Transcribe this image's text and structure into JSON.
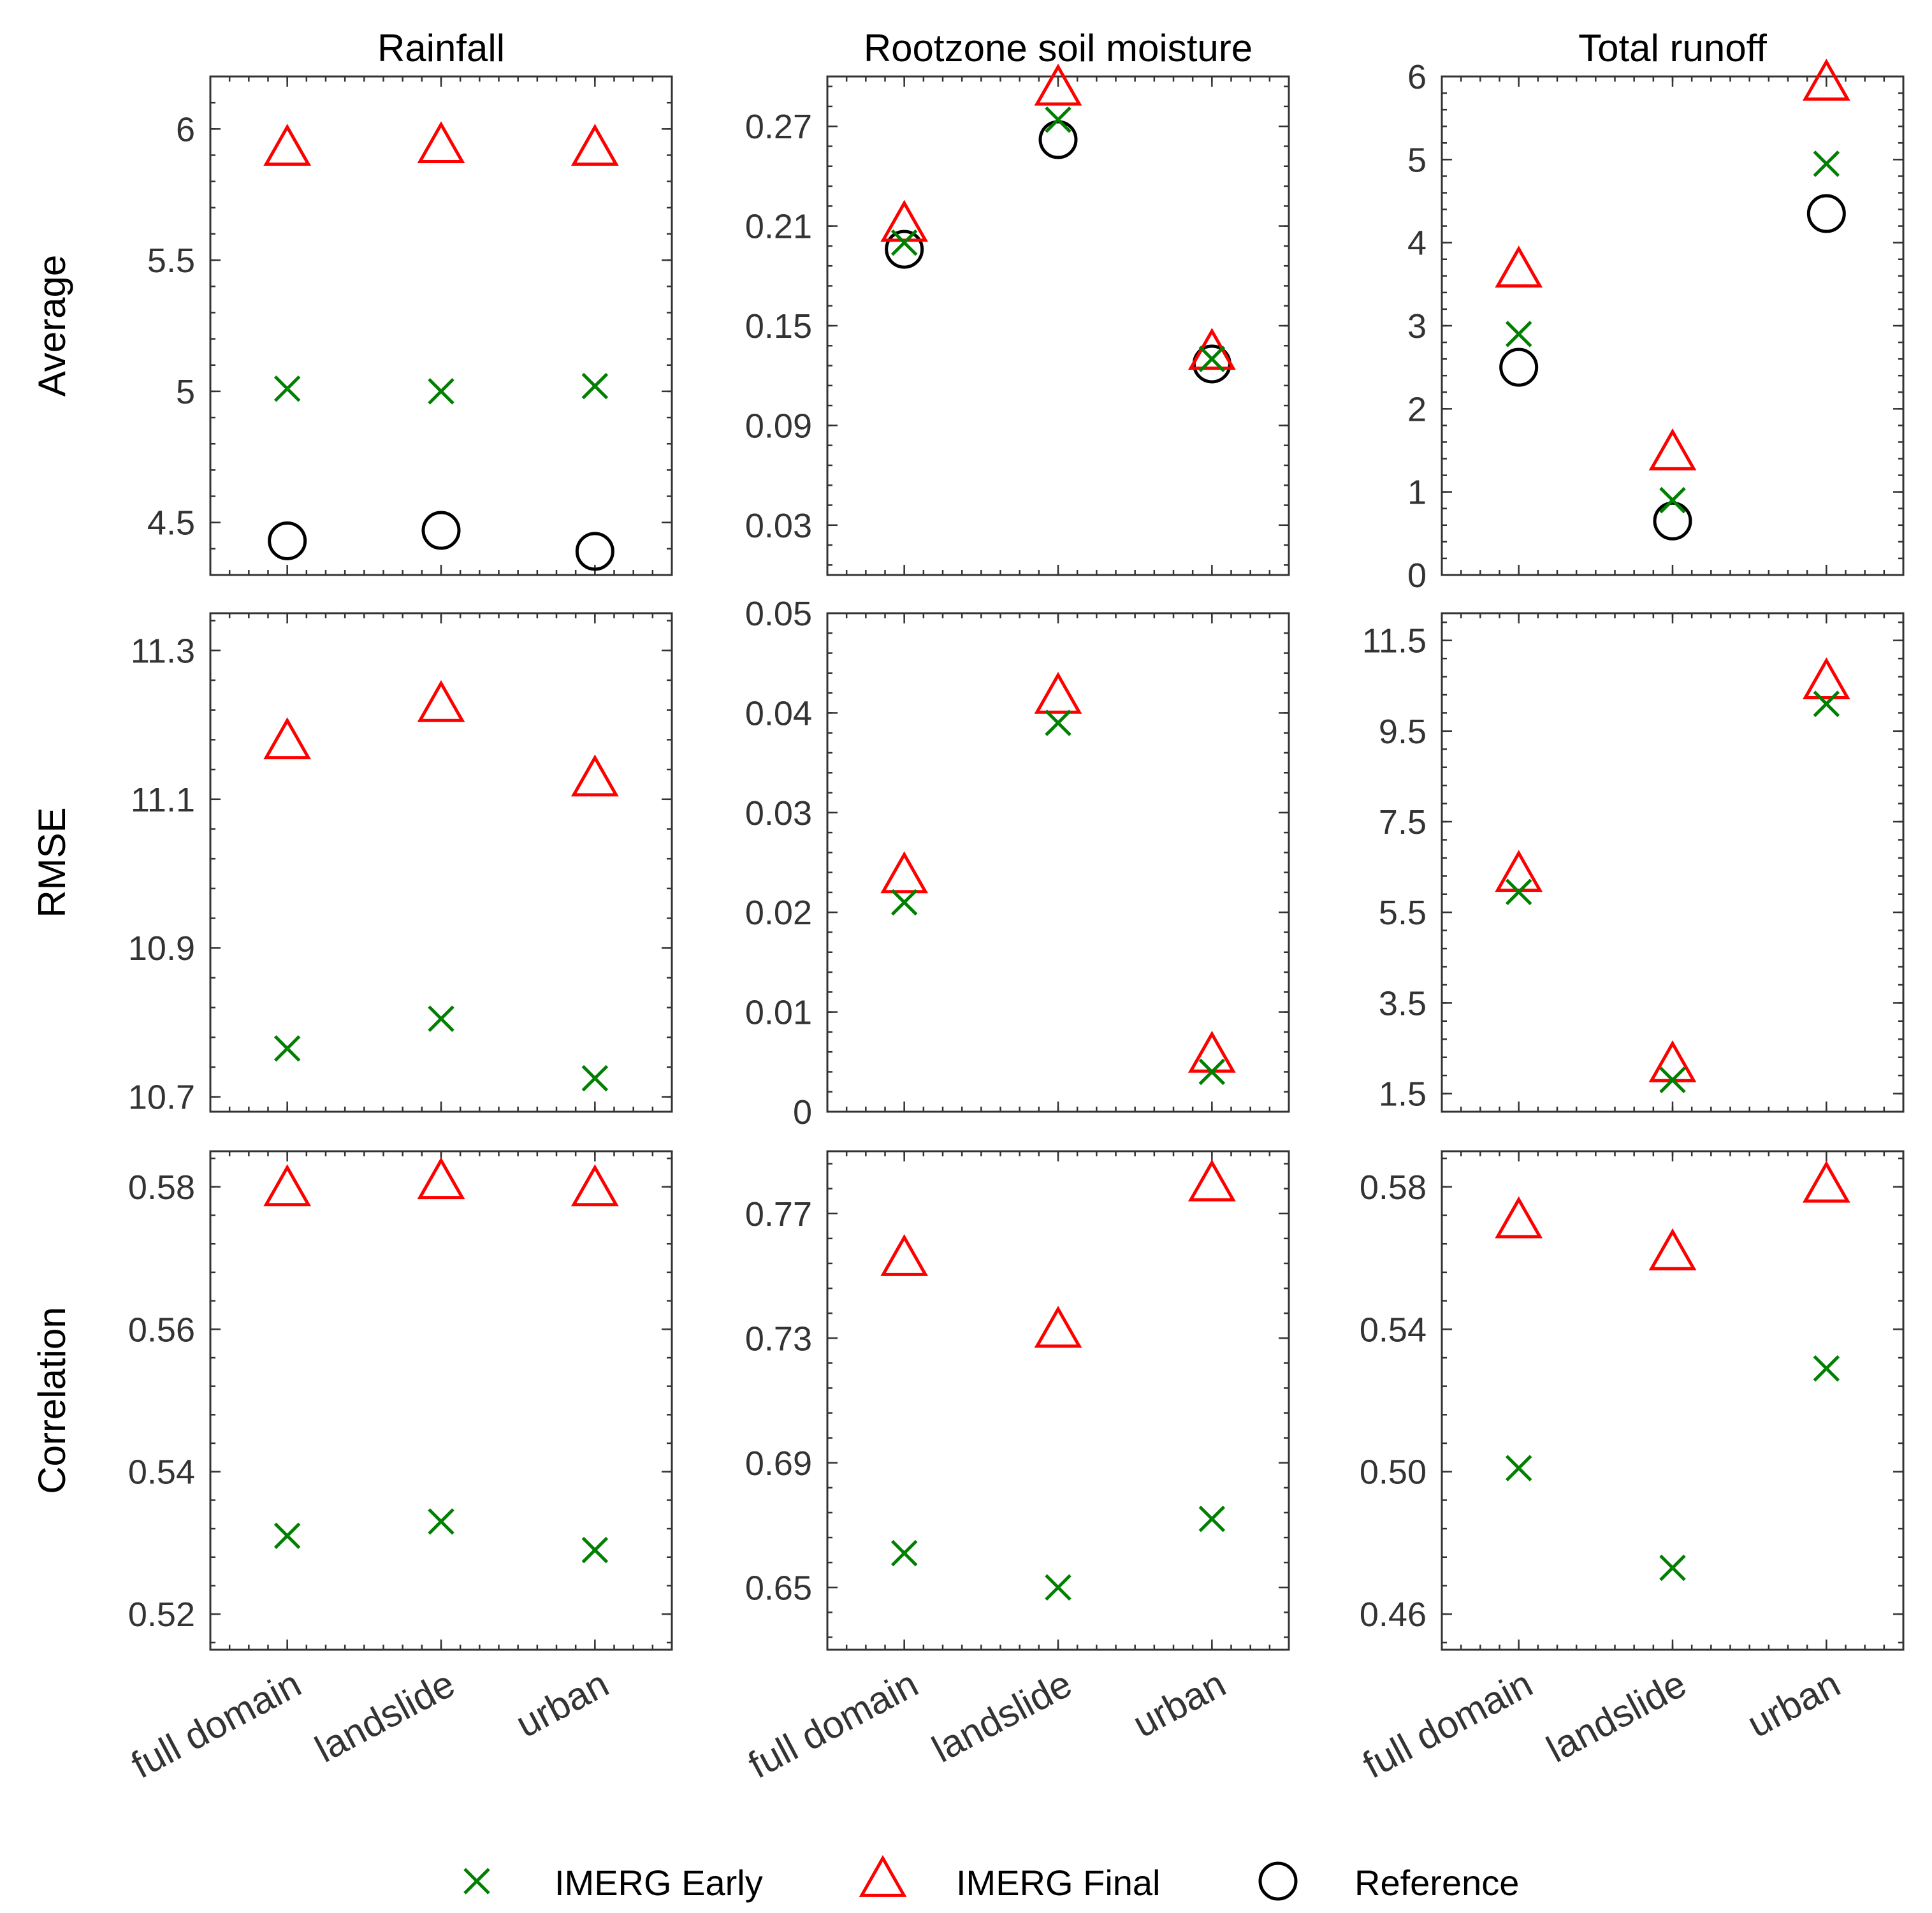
{
  "chart_data": {
    "type": "scatter",
    "categories": [
      "full domain",
      "landslide",
      "urban"
    ],
    "columns": [
      "Rainfall",
      "Rootzone soil moisture",
      "Total runoff"
    ],
    "rows": [
      "Average",
      "RMSE",
      "Correlation"
    ],
    "legend": [
      {
        "name": "IMERG Early",
        "marker": "x",
        "color": "#008000"
      },
      {
        "name": "IMERG Final",
        "marker": "triangle",
        "color": "#ff0000"
      },
      {
        "name": "Reference",
        "marker": "circle",
        "color": "#000000"
      }
    ],
    "panels": [
      {
        "row": "Average",
        "column": "Rainfall",
        "ylim": [
          4.3,
          6.2
        ],
        "yticks": [
          4.5,
          5,
          5.5,
          6
        ],
        "ytick_labels": [
          "4.5",
          "5",
          "5.5",
          "6"
        ],
        "series": {
          "IMERG Early": [
            5.01,
            5.0,
            5.02
          ],
          "IMERG Final": [
            5.92,
            5.93,
            5.92
          ],
          "Reference": [
            4.43,
            4.47,
            4.39
          ]
        }
      },
      {
        "row": "Average",
        "column": "Rootzone soil moisture",
        "ylim": [
          0.0,
          0.3
        ],
        "yticks": [
          0.03,
          0.09,
          0.15,
          0.21,
          0.27
        ],
        "ytick_labels": [
          "0.03",
          "0.09",
          "0.15",
          "0.21",
          "0.27"
        ],
        "series": {
          "IMERG Early": [
            0.2,
            0.274,
            0.13
          ],
          "IMERG Final": [
            0.21,
            0.292,
            0.133
          ],
          "Reference": [
            0.196,
            0.262,
            0.127
          ]
        }
      },
      {
        "row": "Average",
        "column": "Total runoff",
        "ylim": [
          0,
          6
        ],
        "yticks": [
          0,
          1,
          2,
          3,
          4,
          5,
          6
        ],
        "ytick_labels": [
          "0",
          "1",
          "2",
          "3",
          "4",
          "5",
          "6"
        ],
        "series": {
          "IMERG Early": [
            2.9,
            0.9,
            4.95
          ],
          "IMERG Final": [
            3.65,
            1.45,
            5.9
          ],
          "Reference": [
            2.5,
            0.65,
            4.35
          ]
        }
      },
      {
        "row": "RMSE",
        "column": "Rainfall",
        "ylim": [
          10.68,
          11.35
        ],
        "yticks": [
          10.7,
          10.9,
          11.1,
          11.3
        ],
        "ytick_labels": [
          "10.7",
          "10.9",
          "11.1",
          "11.3"
        ],
        "series": {
          "IMERG Early": [
            10.765,
            10.805,
            10.725
          ],
          "IMERG Final": [
            11.175,
            11.225,
            11.125
          ]
        }
      },
      {
        "row": "RMSE",
        "column": "Rootzone soil moisture",
        "ylim": [
          0,
          0.05
        ],
        "yticks": [
          0,
          0.01,
          0.02,
          0.03,
          0.04,
          0.05
        ],
        "ytick_labels": [
          "0",
          "0.01",
          "0.02",
          "0.03",
          "0.04",
          "0.05"
        ],
        "series": {
          "IMERG Early": [
            0.021,
            0.039,
            0.004
          ],
          "IMERG Final": [
            0.0235,
            0.0415,
            0.0055
          ]
        }
      },
      {
        "row": "RMSE",
        "column": "Total runoff",
        "ylim": [
          1.1,
          12.1
        ],
        "yticks": [
          1.5,
          3.5,
          5.5,
          7.5,
          9.5,
          11.5
        ],
        "ytick_labels": [
          "1.5",
          "3.5",
          "5.5",
          "7.5",
          "9.5",
          "11.5"
        ],
        "series": {
          "IMERG Early": [
            5.95,
            1.8,
            10.1
          ],
          "IMERG Final": [
            6.3,
            2.1,
            10.55
          ]
        }
      },
      {
        "row": "Correlation",
        "column": "Rainfall",
        "ylim": [
          0.515,
          0.585
        ],
        "yticks": [
          0.52,
          0.54,
          0.56,
          0.58
        ],
        "ytick_labels": [
          "0.52",
          "0.54",
          "0.56",
          "0.58"
        ],
        "series": {
          "IMERG Early": [
            0.531,
            0.533,
            0.529
          ],
          "IMERG Final": [
            0.5795,
            0.5805,
            0.5795
          ]
        }
      },
      {
        "row": "Correlation",
        "column": "Rootzone soil moisture",
        "ylim": [
          0.63,
          0.79
        ],
        "yticks": [
          0.65,
          0.69,
          0.73,
          0.77
        ],
        "ytick_labels": [
          "0.65",
          "0.69",
          "0.73",
          "0.77"
        ],
        "series": {
          "IMERG Early": [
            0.661,
            0.65,
            0.672
          ],
          "IMERG Final": [
            0.755,
            0.732,
            0.779
          ]
        }
      },
      {
        "row": "Correlation",
        "column": "Total runoff",
        "ylim": [
          0.45,
          0.59
        ],
        "yticks": [
          0.46,
          0.5,
          0.54,
          0.58
        ],
        "ytick_labels": [
          "0.46",
          "0.50",
          "0.54",
          "0.58"
        ],
        "series": {
          "IMERG Early": [
            0.501,
            0.473,
            0.529
          ],
          "IMERG Final": [
            0.57,
            0.561,
            0.58
          ]
        }
      }
    ]
  }
}
